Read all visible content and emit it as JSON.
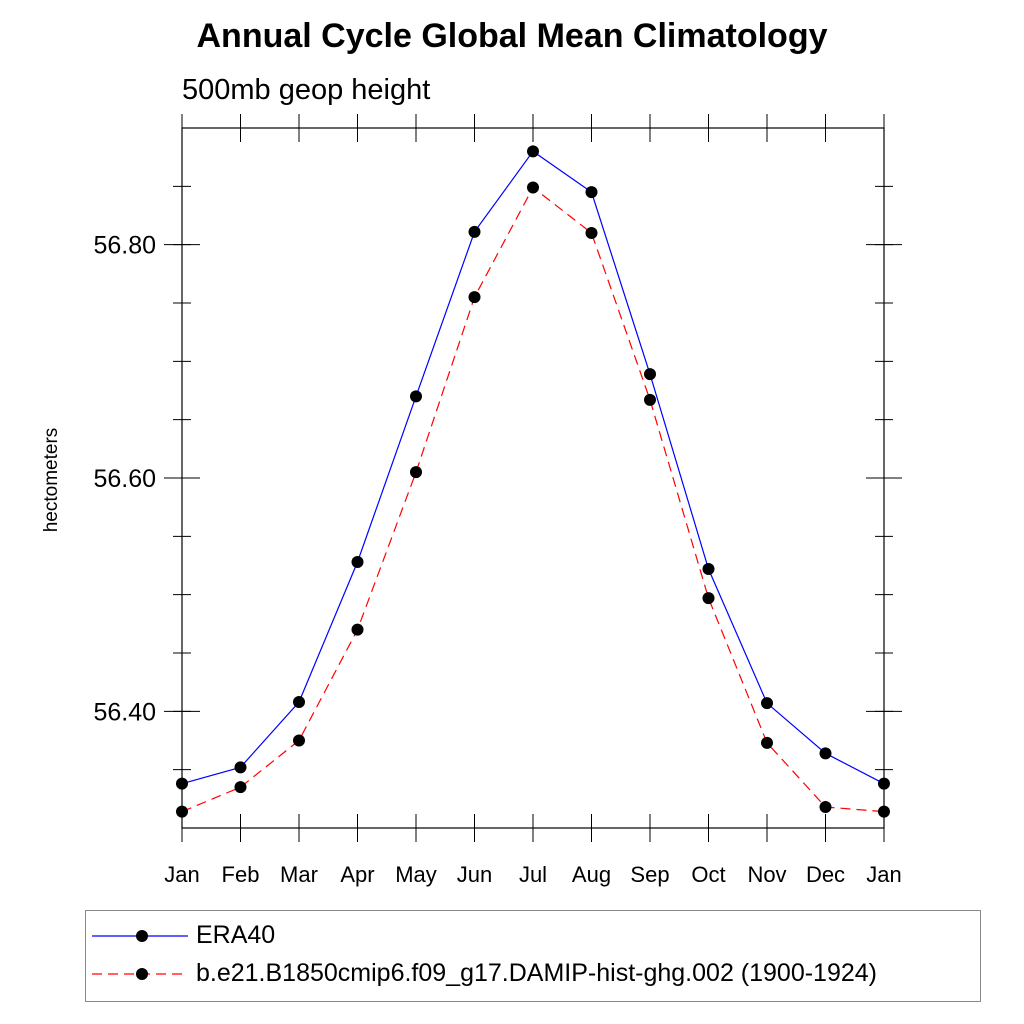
{
  "chart_data": {
    "type": "line",
    "title": "Annual Cycle Global Mean Climatology",
    "subtitle": "500mb geop height",
    "xlabel": "",
    "ylabel": "hectometers",
    "categories": [
      "Jan",
      "Feb",
      "Mar",
      "Apr",
      "May",
      "Jun",
      "Jul",
      "Aug",
      "Sep",
      "Oct",
      "Nov",
      "Dec",
      "Jan"
    ],
    "ylim": [
      56.3,
      56.9
    ],
    "yticks_major": [
      "56.40",
      "56.60",
      "56.80"
    ],
    "ytick_values": [
      56.4,
      56.6,
      56.8
    ],
    "grid": false,
    "legend_position": "bottom",
    "series": [
      {
        "name": "ERA40",
        "color": "#0000ff",
        "dash": "solid",
        "marker": "filled-circle",
        "values": [
          56.338,
          56.352,
          56.408,
          56.528,
          56.67,
          56.811,
          56.88,
          56.845,
          56.689,
          56.522,
          56.407,
          56.364,
          56.338
        ]
      },
      {
        "name": "b.e21.B1850cmip6.f09_g17.DAMIP-hist-ghg.002 (1900-1924)",
        "color": "#ff0000",
        "dash": "dashed",
        "marker": "filled-circle",
        "values": [
          56.314,
          56.335,
          56.375,
          56.47,
          56.605,
          56.755,
          56.849,
          56.81,
          56.667,
          56.497,
          56.373,
          56.318,
          56.314
        ]
      }
    ]
  }
}
